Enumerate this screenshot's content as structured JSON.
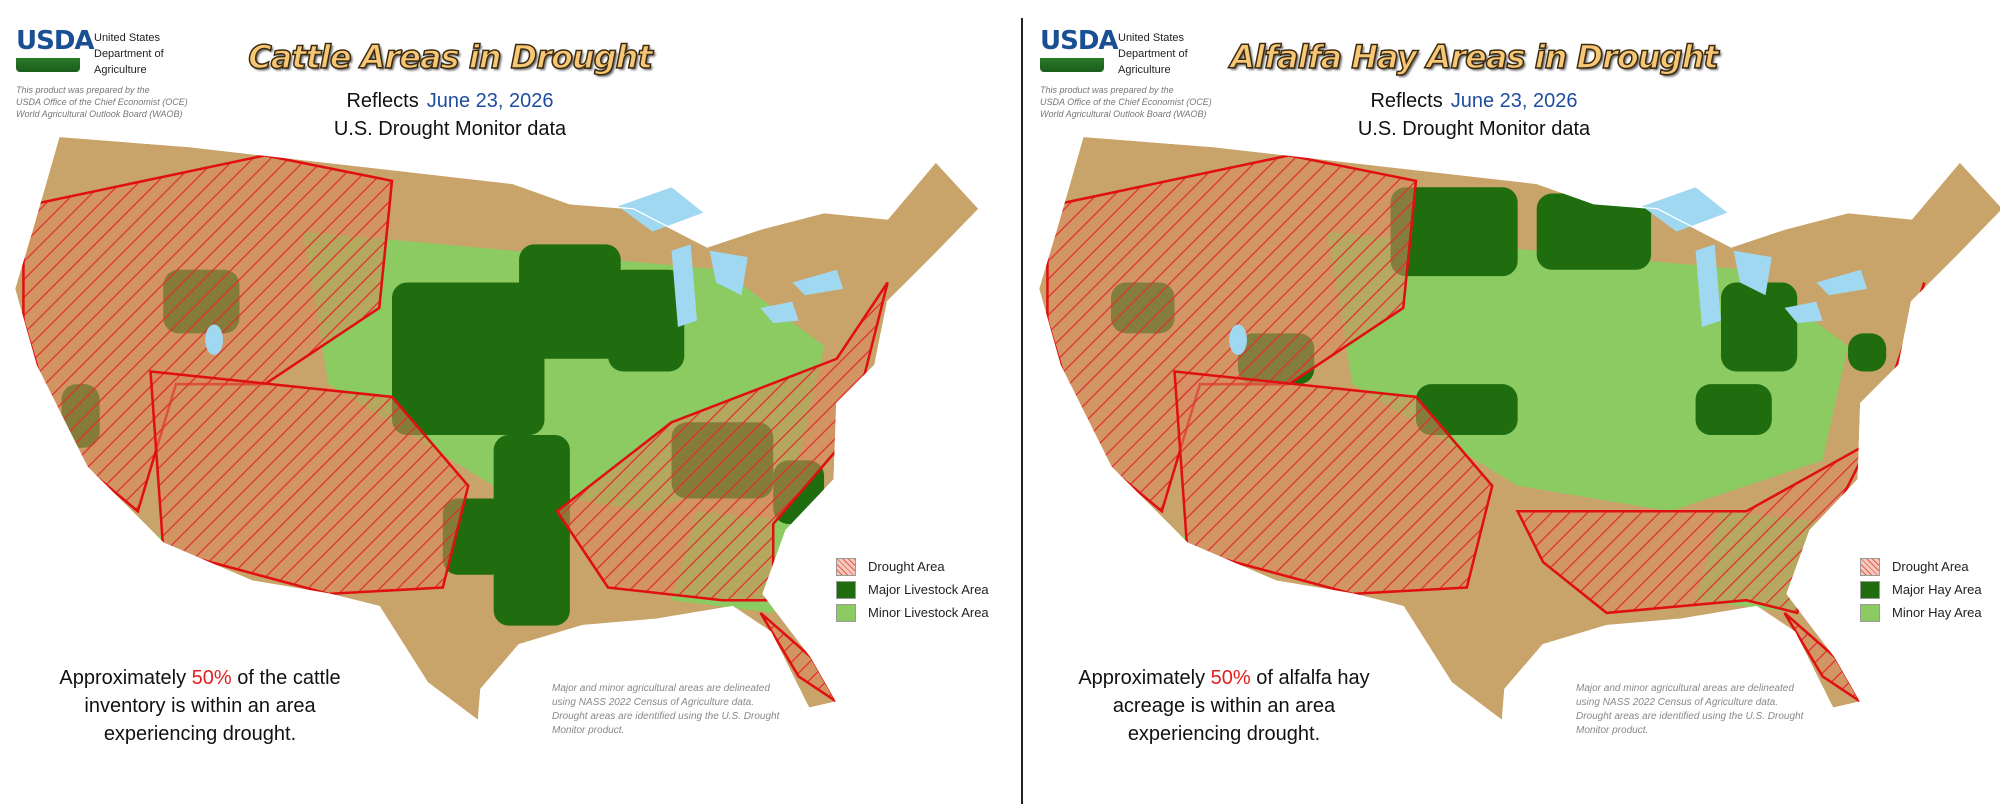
{
  "panels": [
    {
      "logo": "USDA",
      "org": [
        "United States",
        "Department of",
        "Agriculture"
      ],
      "note": [
        "This product was prepared by the",
        "USDA Office of the Chief Economist (OCE)",
        "World Agricultural Outlook Board (WAOB)"
      ],
      "title": "Cattle Areas in Drought",
      "reflects": "Reflects",
      "date": "June 23, 2026",
      "subtitle": "U.S. Drought Monitor data",
      "legend": [
        "Drought Area",
        "Major Livestock Area",
        "Minor Livestock Area"
      ],
      "summary": {
        "before": "Approximately",
        "highlight": "50%",
        "after": "of the cattle inventory is within an area experiencing drought."
      },
      "footnote": "Major and minor agricultural areas are delineated using NASS 2022 Census of Agriculture data.  Drought areas are identified using the U.S. Drought Monitor product."
    },
    {
      "logo": "USDA",
      "org": [
        "United States",
        "Department of",
        "Agriculture"
      ],
      "note": [
        "This product was prepared by the",
        "USDA Office of the Chief Economist (OCE)",
        "World Agricultural Outlook Board (WAOB)"
      ],
      "title": "Alfalfa Hay Areas in Drought",
      "reflects": "Reflects",
      "date": "June 23, 2026",
      "subtitle": "U.S. Drought Monitor data",
      "legend": [
        "Drought Area",
        "Major Hay Area",
        "Minor Hay Area"
      ],
      "summary": {
        "before": "Approximately",
        "highlight": "50%",
        "after": "of alfalfa hay acreage is within an area experiencing drought."
      },
      "footnote": "Major and minor agricultural areas are delineated using NASS 2022 Census of Agriculture data.  Drought areas are identified using the U.S. Drought Monitor product."
    }
  ]
}
